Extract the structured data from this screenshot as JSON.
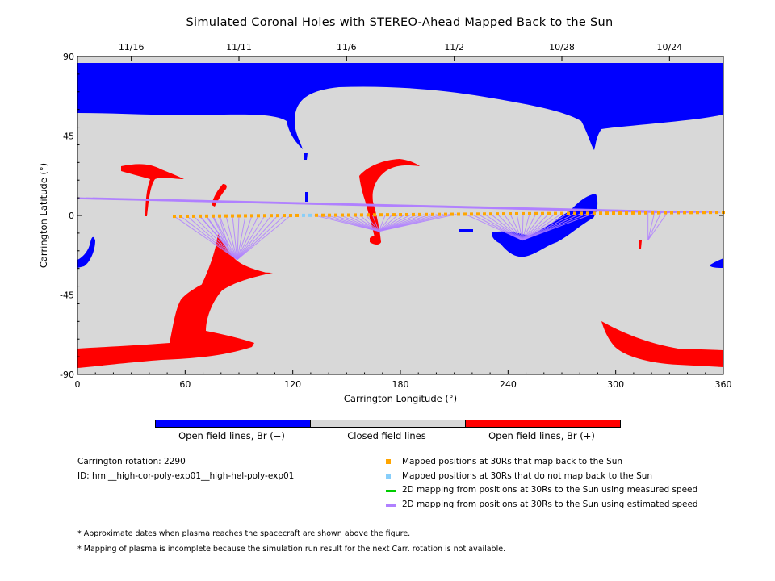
{
  "chart_data": {
    "type": "map",
    "title": "Simulated Coronal Holes with STEREO-Ahead Mapped Back to the Sun",
    "xlabel": "Carrington Longitude (°)",
    "ylabel": "Carrington Latitude (°)",
    "xlim": [
      0,
      360
    ],
    "ylim": [
      -90,
      90
    ],
    "x_ticks": [
      0,
      60,
      120,
      180,
      240,
      300,
      360
    ],
    "x_tick_labels": [
      "0",
      "60",
      "120",
      "180",
      "240",
      "300",
      "360"
    ],
    "y_ticks": [
      90,
      45,
      0,
      -45,
      -90
    ],
    "y_tick_labels": [
      "90",
      "45",
      "0",
      "-45",
      "-90"
    ],
    "top_date_ticks": [
      {
        "lon": 30,
        "label": "11/16"
      },
      {
        "lon": 90,
        "label": "11/11"
      },
      {
        "lon": 150,
        "label": "11/6"
      },
      {
        "lon": 210,
        "label": "11/2"
      },
      {
        "lon": 270,
        "label": "10/28"
      },
      {
        "lon": 330,
        "label": "10/24"
      }
    ],
    "background_color": "#d8d8d8",
    "negative_color": "#0000ff",
    "positive_color": "#ff0000",
    "mapped_points": {
      "lon_start": 54,
      "lon_end": 360,
      "step": 3.6,
      "lat_start": -0.5,
      "lat_end": 1.8,
      "color": "#ffa500",
      "not_mapped_lons": [
        126,
        130
      ],
      "not_mapped_color": "#87cefa"
    },
    "mapping_line_groups": [
      {
        "foot": [
          89,
          -25
        ],
        "lon_from": 54,
        "lon_to": 122
      },
      {
        "foot": [
          84,
          -18
        ],
        "lon_from": 68,
        "lon_to": 80
      },
      {
        "foot": [
          168,
          -9
        ],
        "lon_from": 132,
        "lon_to": 212
      },
      {
        "foot": [
          248,
          -14
        ],
        "lon_from": 216,
        "lon_to": 290
      },
      {
        "foot": [
          318,
          -14
        ],
        "lon_from": 318,
        "lon_to": 330
      },
      {
        "foot": [
          0,
          10
        ],
        "lon_from": 326,
        "lon_to": 360,
        "wrap": true
      }
    ],
    "mapping_line_color": "#b080ff"
  },
  "colorbar": {
    "labels": [
      "Open field lines, Br (−)",
      "Closed field lines",
      "Open field lines, Br (+)"
    ],
    "colors": [
      "#0000ff",
      "#d8d8d8",
      "#ff0000"
    ]
  },
  "info": {
    "rotation": "Carrington rotation: 2290",
    "id": "ID: hmi__high-cor-poly-exp01__high-hel-poly-exp01"
  },
  "legend": [
    {
      "label": "Mapped positions at 30Rs that map back to the Sun",
      "color": "#ffa500",
      "kind": "square"
    },
    {
      "label": "Mapped positions at 30Rs that do not map back to the Sun",
      "color": "#87cefa",
      "kind": "square"
    },
    {
      "label": "2D mapping from positions at 30Rs to the Sun using measured speed",
      "color": "#00cc00",
      "kind": "line"
    },
    {
      "label": "2D mapping from positions at 30Rs to the Sun using estimated speed",
      "color": "#b080ff",
      "kind": "line"
    }
  ],
  "notes": [
    "* Approximate dates when plasma reaches the spacecraft are shown above the figure.",
    "* Mapping of plasma is incomplete because the simulation run result for the next Carr. rotation is not available."
  ]
}
